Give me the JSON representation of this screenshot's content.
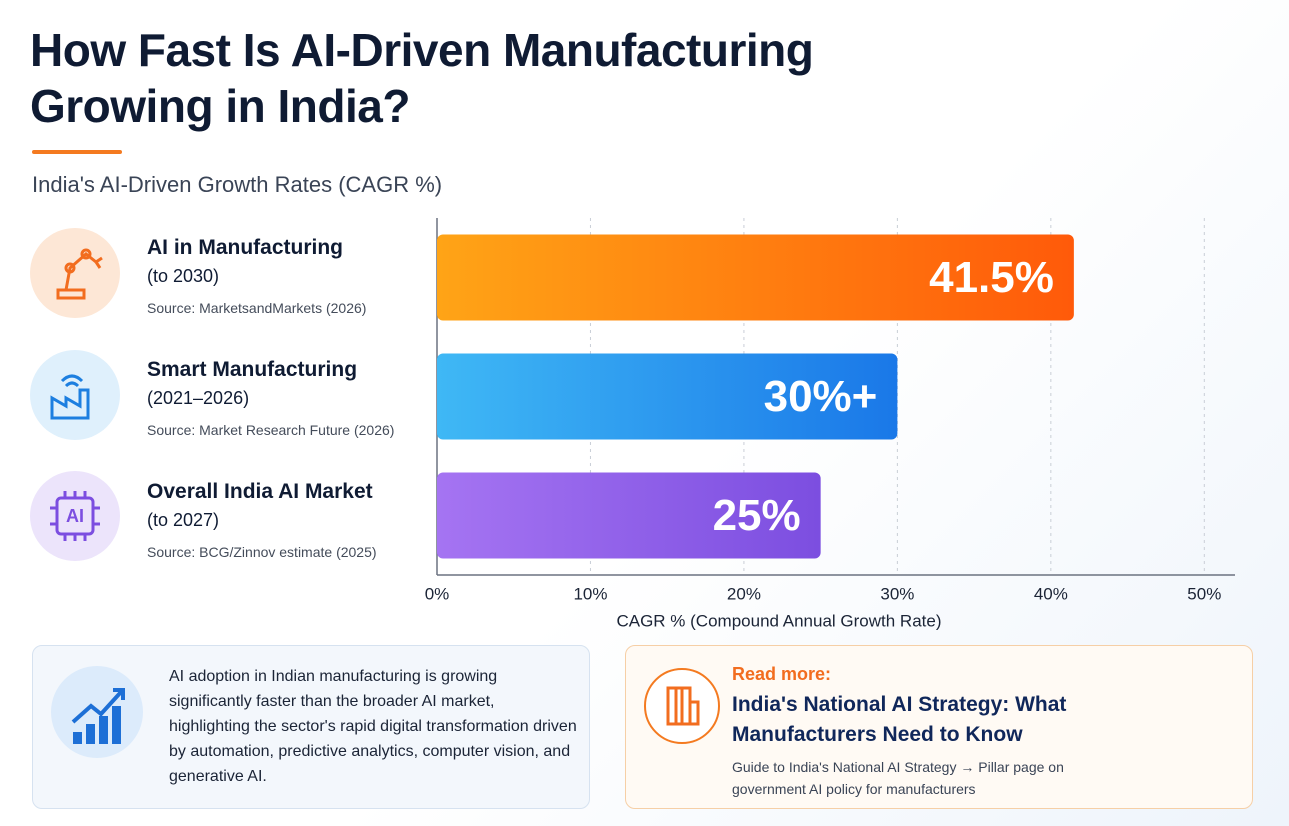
{
  "title": "How Fast Is AI-Driven Manufacturing Growing in India?",
  "chart_data": {
    "type": "bar",
    "orientation": "horizontal",
    "subtitle": "India's AI-Driven Growth Rates (CAGR %)",
    "categories": [
      "AI in Manufacturing",
      "Smart Manufacturing",
      "Overall India AI Market"
    ],
    "periods": [
      "(to 2030)",
      "(2021–2026)",
      "(to 2027)"
    ],
    "sources": [
      "Source: MarketsandMarkets (2026)",
      "Source: Market Research Future (2026)",
      "Source: BCG/Zinnov estimate (2025)"
    ],
    "values": [
      41.5,
      30,
      25
    ],
    "value_labels": [
      "41.5%",
      "30%+",
      "25%"
    ],
    "colors": [
      {
        "start": "#ffa416",
        "end": "#ff5a0a"
      },
      {
        "start": "#3fb8f5",
        "end": "#1a78e8"
      },
      {
        "start": "#a574f2",
        "end": "#7c4ee0"
      }
    ],
    "xlabel": "CAGR % (Compound Annual Growth Rate)",
    "xlim": [
      0,
      52
    ],
    "xticks": [
      {
        "value": 0,
        "label": "0%"
      },
      {
        "value": 10,
        "label": "10%"
      },
      {
        "value": 20,
        "label": "20%"
      },
      {
        "value": 30,
        "label": "30%"
      },
      {
        "value": 40,
        "label": "40%"
      },
      {
        "value": 50,
        "label": "50%"
      }
    ],
    "grid": true
  },
  "insight": {
    "text": "AI adoption in Indian manufacturing is growing significantly faster than the broader AI market, highlighting the sector's rapid digital transformation driven by automation, predictive analytics, computer vision, and generative AI."
  },
  "read_more": {
    "kicker": "Read more:",
    "title": "India's National AI Strategy: What Manufacturers Need to Know",
    "description": "Guide to India's National AI Strategy → Pillar page on government AI policy for manufacturers"
  }
}
